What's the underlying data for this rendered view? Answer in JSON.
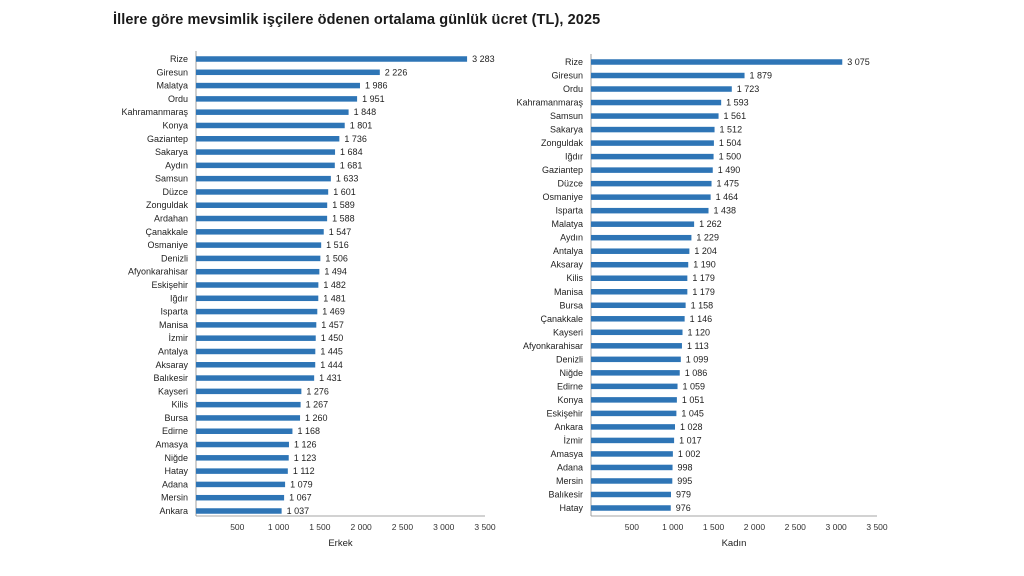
{
  "title": "İllere göre mevsimlik işçilere ödenen ortalama günlük ücret (TL), 2025",
  "chart_data": [
    {
      "type": "bar",
      "orientation": "horizontal",
      "xlabel": "Erkek",
      "xlim": [
        0,
        3500
      ],
      "xticks": [
        500,
        1000,
        1500,
        2000,
        2500,
        3000,
        3500
      ],
      "xtick_labels": [
        "500",
        "1 000",
        "1 500",
        "2 000",
        "2 500",
        "3 000",
        "3 500"
      ],
      "categories": [
        "Rize",
        "Giresun",
        "Malatya",
        "Ordu",
        "Kahramanmaraş",
        "Konya",
        "Gaziantep",
        "Sakarya",
        "Aydın",
        "Samsun",
        "Düzce",
        "Zonguldak",
        "Ardahan",
        "Çanakkale",
        "Osmaniye",
        "Denizli",
        "Afyonkarahisar",
        "Eskişehir",
        "Iğdır",
        "Isparta",
        "Manisa",
        "İzmir",
        "Antalya",
        "Aksaray",
        "Balıkesir",
        "Kayseri",
        "Kilis",
        "Bursa",
        "Edirne",
        "Amasya",
        "Niğde",
        "Hatay",
        "Adana",
        "Mersin",
        "Ankara"
      ],
      "values": [
        3283,
        2226,
        1986,
        1951,
        1848,
        1801,
        1736,
        1684,
        1681,
        1633,
        1601,
        1589,
        1588,
        1547,
        1516,
        1506,
        1494,
        1482,
        1481,
        1469,
        1457,
        1450,
        1445,
        1444,
        1431,
        1276,
        1267,
        1260,
        1168,
        1126,
        1123,
        1112,
        1079,
        1067,
        1037
      ],
      "value_labels": [
        "3 283",
        "2 226",
        "1 986",
        "1 951",
        "1 848",
        "1 801",
        "1 736",
        "1 684",
        "1 681",
        "1 633",
        "1 601",
        "1 589",
        "1 588",
        "1 547",
        "1 516",
        "1 506",
        "1 494",
        "1 482",
        "1 481",
        "1 469",
        "1 457",
        "1 450",
        "1 445",
        "1 444",
        "1 431",
        "1 276",
        "1 267",
        "1 260",
        "1 168",
        "1 126",
        "1 123",
        "1 112",
        "1 079",
        "1 067",
        "1 037"
      ]
    },
    {
      "type": "bar",
      "orientation": "horizontal",
      "xlabel": "Kadın",
      "xlim": [
        0,
        3500
      ],
      "xticks": [
        500,
        1000,
        1500,
        2000,
        2500,
        3000,
        3500
      ],
      "xtick_labels": [
        "500",
        "1 000",
        "1 500",
        "2 000",
        "2 500",
        "3 000",
        "3 500"
      ],
      "categories": [
        "Rize",
        "Giresun",
        "Ordu",
        "Kahramanmaraş",
        "Samsun",
        "Sakarya",
        "Zonguldak",
        "Iğdır",
        "Gaziantep",
        "Düzce",
        "Osmaniye",
        "Isparta",
        "Malatya",
        "Aydın",
        "Antalya",
        "Aksaray",
        "Kilis",
        "Manisa",
        "Bursa",
        "Çanakkale",
        "Kayseri",
        "Afyonkarahisar",
        "Denizli",
        "Niğde",
        "Edirne",
        "Konya",
        "Eskişehir",
        "Ankara",
        "İzmir",
        "Amasya",
        "Adana",
        "Mersin",
        "Balıkesir",
        "Hatay"
      ],
      "values": [
        3075,
        1879,
        1723,
        1593,
        1561,
        1512,
        1504,
        1500,
        1490,
        1475,
        1464,
        1438,
        1262,
        1229,
        1204,
        1190,
        1179,
        1179,
        1158,
        1146,
        1120,
        1113,
        1099,
        1086,
        1059,
        1051,
        1045,
        1028,
        1017,
        1002,
        998,
        995,
        979,
        976
      ],
      "value_labels": [
        "3 075",
        "1 879",
        "1 723",
        "1 593",
        "1 561",
        "1 512",
        "1 504",
        "1 500",
        "1 490",
        "1 475",
        "1 464",
        "1 438",
        "1 262",
        "1 229",
        "1 204",
        "1 190",
        "1 179",
        "1 179",
        "1 158",
        "1 146",
        "1 120",
        "1 113",
        "1 099",
        "1 086",
        "1 059",
        "1 051",
        "1 045",
        "1 028",
        "1 017",
        "1 002",
        "998",
        "995",
        "979",
        "976"
      ]
    }
  ]
}
